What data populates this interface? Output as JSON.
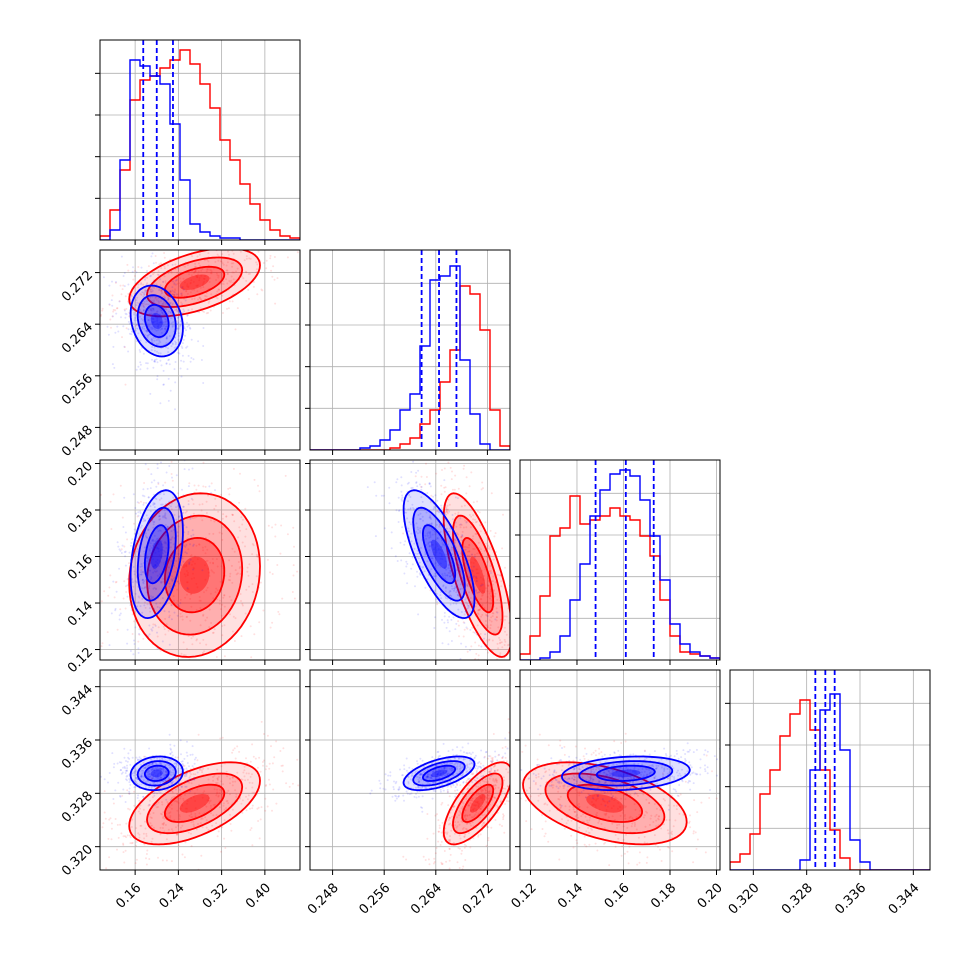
{
  "chart_data": {
    "type": "corner",
    "title": "",
    "n_params": 4,
    "colors": {
      "red": "#ff0000",
      "blue": "#0000ff",
      "grid": "#b0b0b0",
      "frame": "#000000"
    },
    "grid": true,
    "parameters": [
      {
        "index": 0,
        "range": [
          0.095,
          0.465
        ],
        "ticks": [
          "0.16",
          "0.24",
          "0.32",
          "0.40"
        ],
        "tick_values": [
          0.16,
          0.24,
          0.32,
          0.4
        ],
        "xlabel": ""
      },
      {
        "index": 1,
        "range": [
          0.2445,
          0.2755
        ],
        "ticks": [
          "0.248",
          "0.256",
          "0.264",
          "0.272"
        ],
        "tick_values": [
          0.248,
          0.256,
          0.264,
          0.272
        ],
        "xlabel": ""
      },
      {
        "index": 2,
        "range": [
          0.1155,
          0.2015
        ],
        "ticks": [
          "0.12",
          "0.14",
          "0.16",
          "0.18",
          "0.20"
        ],
        "tick_values": [
          0.12,
          0.14,
          0.16,
          0.18,
          0.2
        ],
        "xlabel": ""
      },
      {
        "index": 3,
        "range": [
          0.3165,
          0.3465
        ],
        "ticks": [
          "0.320",
          "0.328",
          "0.336",
          "0.344"
        ],
        "tick_values": [
          0.32,
          0.328,
          0.336,
          0.344
        ],
        "xlabel": ""
      }
    ],
    "series": [
      {
        "color": "red",
        "means": [
          0.27,
          0.2705,
          0.152,
          0.3265
        ],
        "stds": [
          0.055,
          0.0024,
          0.016,
          0.0028
        ],
        "correlations": {
          "1,0": 0.5,
          "2,0": 0.1,
          "2,1": -0.7,
          "3,0": 0.55,
          "3,1": 0.7,
          "3,2": -0.45
        },
        "histograms": [
          {
            "edges": [
              0.095,
              0.465
            ],
            "counts": [
              0.02,
              0.15,
              0.35,
              0.7,
              0.8,
              0.82,
              0.86,
              0.9,
              0.95,
              0.88,
              0.78,
              0.66,
              0.5,
              0.4,
              0.28,
              0.18,
              0.1,
              0.05,
              0.02,
              0.01
            ]
          },
          {
            "edges": [
              0.2445,
              0.2755
            ],
            "counts": [
              0.0,
              0.0,
              0.0,
              0.0,
              0.0,
              0.0,
              0.0,
              0.0,
              0.01,
              0.03,
              0.06,
              0.13,
              0.2,
              0.34,
              0.5,
              0.82,
              0.78,
              0.6,
              0.2,
              0.02
            ]
          },
          {
            "edges": [
              0.1155,
              0.2015
            ],
            "counts": [
              0.03,
              0.12,
              0.32,
              0.62,
              0.66,
              0.82,
              0.68,
              0.7,
              0.72,
              0.76,
              0.72,
              0.7,
              0.62,
              0.52,
              0.3,
              0.12,
              0.04,
              0.03,
              0.02,
              0.01
            ]
          },
          {
            "edges": [
              0.3165,
              0.3465
            ],
            "counts": [
              0.04,
              0.08,
              0.18,
              0.38,
              0.5,
              0.67,
              0.78,
              0.85,
              0.7,
              0.5,
              0.2,
              0.06,
              0.0,
              0.0,
              0.0,
              0.0,
              0.0,
              0.0,
              0.0,
              0.0
            ]
          }
        ]
      },
      {
        "color": "blue",
        "means": [
          0.2,
          0.2645,
          0.161,
          0.331
        ],
        "stds": [
          0.022,
          0.0025,
          0.0125,
          0.00115
        ],
        "correlations": {
          "1,0": -0.2,
          "2,0": 0.35,
          "2,1": -0.7,
          "3,0": 0.1,
          "3,1": 0.55,
          "3,2": 0.2
        },
        "histograms": [
          {
            "edges": [
              0.095,
              0.465
            ],
            "counts": [
              0.0,
              0.05,
              0.4,
              0.9,
              0.87,
              0.82,
              0.78,
              0.58,
              0.3,
              0.08,
              0.04,
              0.02,
              0.01,
              0.01,
              0.0,
              0.0,
              0.0,
              0.0,
              0.0,
              0.0
            ]
          },
          {
            "edges": [
              0.2445,
              0.2755
            ],
            "counts": [
              0.0,
              0.0,
              0.0,
              0.0,
              0.0,
              0.01,
              0.02,
              0.05,
              0.1,
              0.2,
              0.28,
              0.52,
              0.85,
              0.87,
              0.92,
              0.45,
              0.18,
              0.03,
              0.0,
              0.0
            ]
          },
          {
            "edges": [
              0.1155,
              0.2015
            ],
            "counts": [
              0.0,
              0.0,
              0.01,
              0.04,
              0.12,
              0.3,
              0.48,
              0.72,
              0.85,
              0.93,
              0.95,
              0.92,
              0.8,
              0.62,
              0.4,
              0.18,
              0.08,
              0.04,
              0.02,
              0.01
            ]
          },
          {
            "edges": [
              0.3165,
              0.3465
            ],
            "counts": [
              0.0,
              0.0,
              0.0,
              0.0,
              0.0,
              0.0,
              0.0,
              0.05,
              0.5,
              0.8,
              0.88,
              0.6,
              0.15,
              0.04,
              0.0,
              0.0,
              0.0,
              0.0,
              0.0,
              0.0
            ]
          }
        ],
        "quantiles": [
          [
            0.175,
            0.2,
            0.23
          ],
          [
            0.2618,
            0.2645,
            0.2672
          ],
          [
            0.148,
            0.161,
            0.173
          ],
          [
            0.3293,
            0.3308,
            0.3322
          ]
        ]
      }
    ]
  }
}
